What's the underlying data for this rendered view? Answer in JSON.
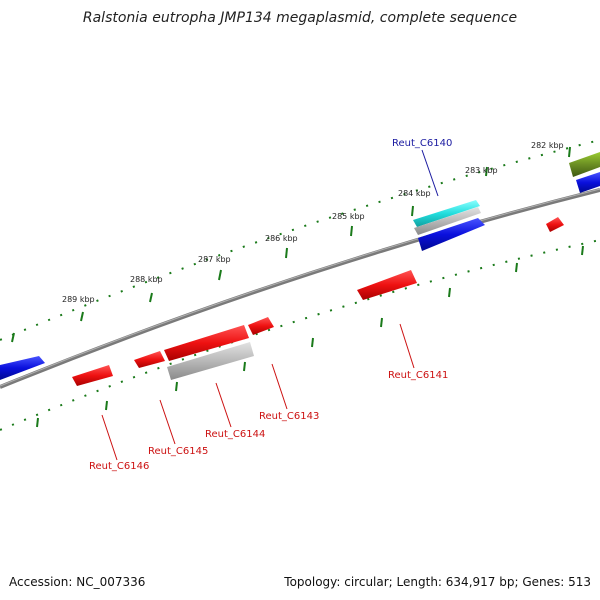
{
  "title": "Ralstonia eutropha JMP134 megaplasmid, complete sequence",
  "footer": {
    "accession": "Accession: NC_007336",
    "summary": "Topology: circular; Length: 634,917 bp; Genes: 513"
  },
  "colors": {
    "backbone": "#7a7a7a",
    "tick": "#1a7a1a",
    "red_gene": "#ee1111",
    "blue_gene": "#0a10dd",
    "gray_gene": "#b8b8b8",
    "cyan_gene": "#22dddd",
    "olive_gene": "#6b8e23",
    "red_label": "#cc1111",
    "blue_label": "#1a1aa0"
  },
  "scale": {
    "unit": "kbp",
    "labels": [
      "282 kbp",
      "283 kbp",
      "284 kbp",
      "285 kbp",
      "286 kbp",
      "287 kbp",
      "288 kbp",
      "289 kbp"
    ]
  },
  "genes": [
    {
      "label": "Reut_C6140",
      "color": "cyan"
    },
    {
      "label": "Reut_C6141",
      "color": "red"
    },
    {
      "label": "Reut_C6143",
      "color": "red"
    },
    {
      "label": "Reut_C6144",
      "color": "red"
    },
    {
      "label": "Reut_C6145",
      "color": "red"
    },
    {
      "label": "Reut_C6146",
      "color": "red"
    }
  ]
}
